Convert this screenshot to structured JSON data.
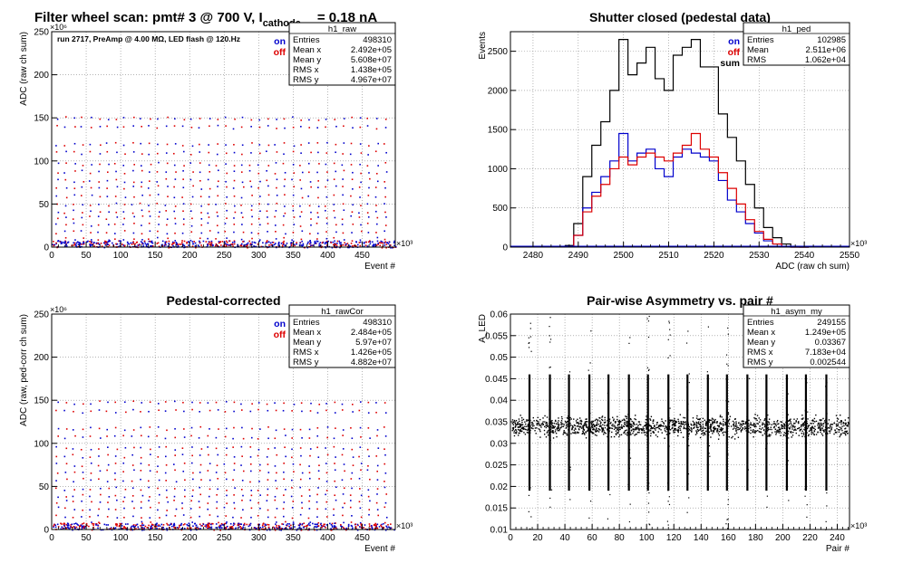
{
  "page": {
    "main_title_prefix": "Filter wheel scan: pmt#   3 @   700 V, I",
    "main_title_sub": "cathode",
    "main_title_suffix": "= 0.18 nA"
  },
  "colors": {
    "on": "#0000cc",
    "off": "#dd0000",
    "sum": "#000000",
    "grid": "#888888"
  },
  "chart_data": [
    {
      "id": "raw",
      "type": "scatter",
      "title": "",
      "annotation": "run 2717, PreAmp @ 4.00 MΩ, LED flash @  120.Hz",
      "xlabel": "Event #",
      "ylabel": "ADC (raw ch sum)",
      "x_multiplier": "×10³",
      "y_multiplier": "×10⁶",
      "xlim": [
        0,
        498
      ],
      "ylim": [
        0,
        250
      ],
      "xticks": [
        0,
        50,
        100,
        150,
        200,
        250,
        300,
        350,
        400,
        450
      ],
      "yticks": [
        0,
        50,
        100,
        150,
        200,
        250
      ],
      "legend": [
        "on",
        "off"
      ],
      "stats": {
        "name": "h1_raw",
        "rows": [
          [
            "Entries",
            "498310"
          ],
          [
            "Mean x",
            "2.492e+05"
          ],
          [
            "Mean y",
            "5.608e+07"
          ],
          [
            "RMS x",
            "1.438e+05"
          ],
          [
            "RMS y",
            "4.967e+07"
          ]
        ]
      },
      "levels": [
        150,
        140,
        120,
        110,
        97,
        88,
        78,
        70,
        60,
        50,
        42,
        35,
        27,
        18,
        10,
        3
      ],
      "grid": true
    },
    {
      "id": "ped",
      "type": "line",
      "title": "Shutter closed (pedestal data)",
      "xlabel": "ADC (raw ch sum)",
      "ylabel": "Events",
      "x_multiplier": "×10³",
      "xlim": [
        2475,
        2550
      ],
      "ylim": [
        0,
        2750
      ],
      "xticks": [
        2480,
        2490,
        2500,
        2510,
        2520,
        2530,
        2540,
        2550
      ],
      "yticks": [
        0,
        500,
        1000,
        1500,
        2000,
        2500
      ],
      "legend": [
        "on",
        "off",
        "sum"
      ],
      "stats": {
        "name": "h1_ped",
        "rows": [
          [
            "Entries",
            "102985"
          ],
          [
            "Mean",
            "2.511e+06"
          ],
          [
            "RMS",
            "1.062e+04"
          ]
        ]
      },
      "x": [
        2488,
        2490,
        2492,
        2494,
        2496,
        2498,
        2500,
        2502,
        2504,
        2506,
        2508,
        2510,
        2512,
        2514,
        2516,
        2518,
        2520,
        2522,
        2524,
        2526,
        2528,
        2530,
        2532,
        2534,
        2536,
        2538,
        2540
      ],
      "series": [
        {
          "name": "sum",
          "values": [
            20,
            300,
            900,
            1300,
            1600,
            2000,
            2650,
            2200,
            2350,
            2550,
            2150,
            2000,
            2450,
            2550,
            2650,
            2300,
            2300,
            1700,
            1400,
            1100,
            800,
            500,
            250,
            120,
            40,
            10,
            0
          ]
        },
        {
          "name": "on",
          "values": [
            10,
            150,
            500,
            700,
            900,
            1100,
            1450,
            1100,
            1200,
            1250,
            1000,
            900,
            1150,
            1250,
            1200,
            1150,
            1100,
            850,
            600,
            450,
            300,
            180,
            80,
            40,
            10,
            0,
            0
          ]
        },
        {
          "name": "off",
          "values": [
            10,
            150,
            450,
            650,
            800,
            1000,
            1150,
            1050,
            1150,
            1200,
            1150,
            1100,
            1200,
            1300,
            1450,
            1250,
            1150,
            950,
            750,
            550,
            350,
            200,
            100,
            40,
            10,
            0,
            0
          ]
        }
      ],
      "grid": true
    },
    {
      "id": "rawCor",
      "type": "scatter",
      "title": "Pedestal-corrected",
      "xlabel": "Event #",
      "ylabel": "ADC (raw, ped-corr ch sum)",
      "x_multiplier": "×10³",
      "y_multiplier": "×10⁶",
      "xlim": [
        0,
        498
      ],
      "ylim": [
        0,
        250
      ],
      "xticks": [
        0,
        50,
        100,
        150,
        200,
        250,
        300,
        350,
        400,
        450
      ],
      "yticks": [
        0,
        50,
        100,
        150,
        200,
        250
      ],
      "legend": [
        "on",
        "off"
      ],
      "stats": {
        "name": "h1_rawCor",
        "rows": [
          [
            "Entries",
            "498310"
          ],
          [
            "Mean x",
            "2.484e+05"
          ],
          [
            "Mean y",
            "5.97e+07"
          ],
          [
            "RMS x",
            "1.426e+05"
          ],
          [
            "RMS y",
            "4.882e+07"
          ]
        ]
      },
      "levels": [
        148,
        138,
        118,
        108,
        95,
        86,
        76,
        68,
        58,
        48,
        40,
        33,
        25,
        16,
        8,
        2
      ],
      "grid": true
    },
    {
      "id": "asym",
      "type": "scatter",
      "title": "Pair-wise Asymmetry vs. pair #",
      "xlabel": "Pair #",
      "ylabel": "A_LED",
      "x_multiplier": "×10³",
      "xlim": [
        0,
        249
      ],
      "ylim": [
        0.01,
        0.06
      ],
      "xticks": [
        0,
        20,
        40,
        60,
        80,
        100,
        120,
        140,
        160,
        180,
        200,
        220,
        240
      ],
      "yticks": [
        0.01,
        0.015,
        0.02,
        0.025,
        0.03,
        0.035,
        0.04,
        0.045,
        0.05,
        0.055,
        0.06
      ],
      "band_center": 0.034,
      "spike_x": [
        14,
        29,
        43,
        58,
        72,
        87,
        101,
        116,
        130,
        145,
        159,
        174,
        188,
        203,
        217,
        232
      ],
      "stats": {
        "name": "h1_asym_my",
        "rows": [
          [
            "Entries",
            "249155"
          ],
          [
            "Mean x",
            "1.249e+05"
          ],
          [
            "Mean y",
            "0.03367"
          ],
          [
            "RMS x",
            "7.183e+04"
          ],
          [
            "RMS y",
            "0.002544"
          ]
        ]
      },
      "grid": true
    }
  ]
}
